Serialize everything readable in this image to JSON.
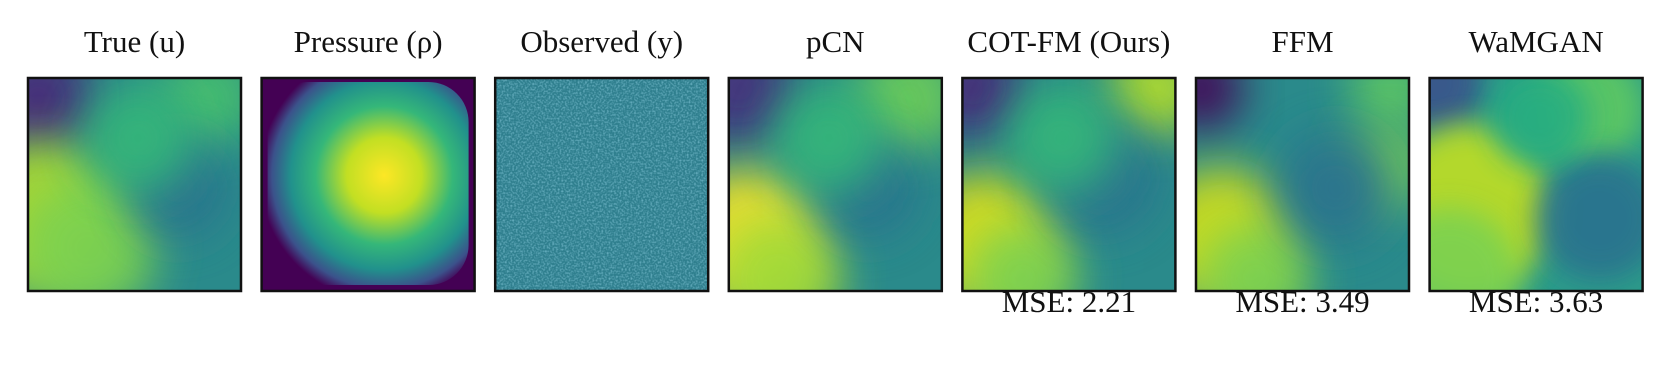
{
  "panels": [
    {
      "title": "True (u)"
    },
    {
      "title": "Pressure (ρ)"
    },
    {
      "title": "Observed (y)"
    },
    {
      "title": "pCN"
    },
    {
      "title": "COT-FM (Ours)",
      "caption": "MSE: 2.21"
    },
    {
      "title": "FFM",
      "caption": "MSE: 3.49"
    },
    {
      "title": "WaMGAN",
      "caption": "MSE: 3.63"
    }
  ]
}
